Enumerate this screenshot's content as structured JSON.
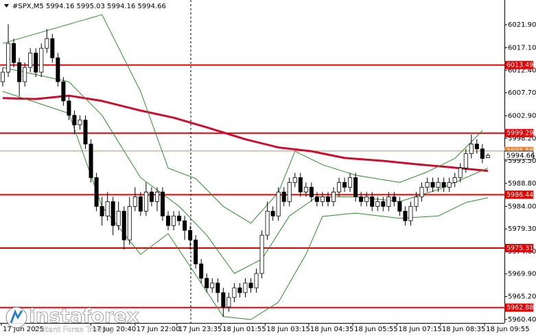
{
  "chart_data": {
    "type": "candlestick",
    "title": "#SPX,M5  5994.16 5995.03 5994.16 5994.66",
    "open": [
      6010,
      6012,
      6018,
      6014,
      6010,
      6013,
      6016,
      6012,
      6017,
      6019,
      6015,
      6010,
      6006,
      6003,
      6001,
      6002,
      5997,
      5990,
      5984,
      5982,
      5985,
      5980,
      5983,
      5977,
      5984,
      5986,
      5983,
      5987,
      5985,
      5987,
      5982,
      5980,
      5982,
      5981,
      5979,
      5977,
      5972,
      5969,
      5967,
      5968,
      5966,
      5963,
      5965,
      5967,
      5966,
      5968,
      5967,
      5970,
      5978,
      5983,
      5982,
      5987,
      5985,
      5989,
      5990,
      5987,
      5988,
      5986,
      5985,
      5986,
      5985,
      5987,
      5989,
      5988,
      5990,
      5986,
      5985,
      5986,
      5984,
      5985,
      5984,
      5986,
      5985,
      5983,
      5981,
      5984,
      5986,
      5988,
      5989,
      5988,
      5989,
      5988,
      5989,
      5990,
      5992,
      5995,
      5997,
      5996,
      5994.16
    ],
    "high": [
      6013,
      6022,
      6019,
      6015,
      6014,
      6017,
      6017,
      6018,
      6021,
      6020,
      6016,
      6011,
      6007,
      6004,
      6003,
      6003,
      5998,
      5991,
      5986,
      5987,
      5986,
      5985,
      5984,
      5986,
      5988,
      5987,
      5989,
      5988,
      5988,
      5988,
      5983,
      5983,
      5983,
      5982,
      5980,
      5978,
      5973,
      5970,
      5969,
      5969,
      5967,
      5966,
      5968,
      5968,
      5969,
      5969,
      5971,
      5979,
      5985,
      5984,
      5988,
      5988,
      5990,
      5991,
      5991,
      5989,
      5989,
      5987,
      5987,
      5987,
      5988,
      5990,
      5990,
      5991,
      5991,
      5987,
      5987,
      5987,
      5986,
      5986,
      5987,
      5987,
      5986,
      5984,
      5985,
      5987,
      5989,
      5990,
      5990,
      5990,
      5990,
      5990,
      5991,
      5993,
      5996,
      5999,
      5998,
      5997,
      5995.03
    ],
    "low": [
      6009,
      6011,
      6013,
      6007,
      6009,
      6012,
      6011,
      6011,
      6016,
      6014,
      6009,
      6005,
      6002,
      5999,
      6000,
      5996,
      5989,
      5983,
      5980,
      5981,
      5978,
      5979,
      5975,
      5976,
      5983,
      5982,
      5982,
      5984,
      5983,
      5981,
      5979,
      5979,
      5980,
      5977,
      5975,
      5971,
      5968,
      5966,
      5966,
      5964,
      5961,
      5962,
      5964,
      5965,
      5965,
      5966,
      5966,
      5969,
      5977,
      5981,
      5981,
      5984,
      5984,
      5988,
      5986,
      5986,
      5985,
      5984,
      5984,
      5984,
      5984,
      5986,
      5987,
      5987,
      5985,
      5984,
      5984,
      5983,
      5983,
      5983,
      5983,
      5984,
      5982,
      5980,
      5980,
      5983,
      5985,
      5987,
      5987,
      5987,
      5987,
      5987,
      5988,
      5989,
      5991,
      5994,
      5995,
      5993,
      5994.16
    ],
    "close": [
      6012,
      6018,
      6014,
      6010,
      6013,
      6016,
      6012,
      6017,
      6019,
      6015,
      6010,
      6006,
      6003,
      6001,
      6002,
      5997,
      5990,
      5984,
      5982,
      5985,
      5980,
      5983,
      5977,
      5984,
      5986,
      5983,
      5987,
      5985,
      5987,
      5982,
      5980,
      5982,
      5981,
      5979,
      5977,
      5972,
      5969,
      5967,
      5968,
      5966,
      5963,
      5965,
      5967,
      5966,
      5968,
      5967,
      5970,
      5978,
      5983,
      5982,
      5987,
      5985,
      5989,
      5990,
      5987,
      5988,
      5986,
      5985,
      5986,
      5985,
      5987,
      5989,
      5988,
      5990,
      5986,
      5985,
      5986,
      5984,
      5985,
      5984,
      5986,
      5985,
      5983,
      5981,
      5984,
      5986,
      5988,
      5989,
      5988,
      5989,
      5988,
      5989,
      5990,
      5992,
      5995,
      5997,
      5996,
      5994,
      5994.66
    ],
    "indicators": [
      {
        "color": "#c8102e",
        "width": 3,
        "x": [
          0,
          6,
          12,
          18,
          25,
          31,
          37,
          44,
          50,
          56,
          62,
          69,
          75,
          81,
          88
        ],
        "values": [
          6006.6,
          6006.4,
          6007.1,
          6006.0,
          6004.0,
          6002.5,
          6000.5,
          5998.0,
          5996.3,
          5995.5,
          5994.1,
          5993.5,
          5992.8,
          5992.2,
          5991.4
        ]
      },
      {
        "color": "#2e8b2e",
        "width": 1,
        "x": [
          0,
          18,
          25,
          30,
          35,
          40,
          45,
          50,
          53,
          58,
          64,
          72,
          77,
          82,
          87
        ],
        "values": [
          6018,
          6024,
          6008,
          5992,
          5989.8,
          5984,
          5980.5,
          5986.9,
          5995.5,
          5992.7,
          5990.5,
          5989,
          5991.2,
          5994,
          5999.8
        ]
      },
      {
        "color": "#2e8b2e",
        "width": 1,
        "x": [
          0,
          12,
          18,
          25,
          32,
          37,
          42,
          47,
          52,
          57,
          64,
          72,
          79,
          88
        ],
        "values": [
          6013,
          6010,
          6003,
          5990,
          5984,
          5978,
          5970,
          5973,
          5982,
          5986,
          5986,
          5985,
          5987.5,
          5992
        ]
      },
      {
        "color": "#2e8b2e",
        "width": 1,
        "x": [
          0,
          12,
          18,
          25,
          30,
          35,
          40,
          45,
          50,
          55,
          58,
          64,
          72,
          79,
          84,
          88
        ],
        "values": [
          6008,
          6003.4,
          5984,
          5974,
          5978.3,
          5969.7,
          5961,
          5960.4,
          5964,
          5974,
          5981.9,
          5982.6,
          5981.5,
          5982,
          5984.8,
          5985.8
        ]
      }
    ],
    "levels": [
      6013.49,
      5999.29,
      5986.44,
      5975.31,
      5962.88
    ],
    "level_color": "#e00000",
    "ask": 5995.56,
    "ask_color": "#e8833a",
    "bid": 5994.66,
    "ylim": [
      5959.68,
      6027.06
    ],
    "yticks": [
      {
        "value": 6021.9,
        "label": "6021.90"
      },
      {
        "value": 6017.1,
        "label": "6017.10"
      },
      {
        "value": 6012.4,
        "label": "6012.40"
      },
      {
        "value": 6007.7,
        "label": "6007.70"
      },
      {
        "value": 6002.9,
        "label": "6002.90"
      },
      {
        "value": 5998.2,
        "label": "5998.20"
      },
      {
        "value": 5993.5,
        "label": "5993.50"
      },
      {
        "value": 5988.8,
        "label": "5988.80"
      },
      {
        "value": 5984.0,
        "label": "5984.00"
      },
      {
        "value": 5979.3,
        "label": "5979.30"
      },
      {
        "value": 5974.6,
        "label": "5974.60"
      },
      {
        "value": 5969.9,
        "label": "5969.90"
      },
      {
        "value": 5965.2,
        "label": "5965.20"
      },
      {
        "value": 5960.4,
        "label": "5960.40"
      }
    ],
    "xlim": [
      -0.5,
      91
    ],
    "xticks": [
      {
        "value": -0.25,
        "label": "17 Jun 2025"
      },
      {
        "value": 16,
        "label": "17 Jun 20:40"
      },
      {
        "value": 24,
        "label": "17 Jun 22:00"
      },
      {
        "value": 31.6,
        "label": "17 Jun 23:35"
      },
      {
        "value": 39.6,
        "label": "18 Jun 01:55"
      },
      {
        "value": 47.6,
        "label": "18 Jun 03:15"
      },
      {
        "value": 55.5,
        "label": "18 Jun 04:35"
      },
      {
        "value": 63.5,
        "label": "18 Jun 05:55"
      },
      {
        "value": 71.5,
        "label": "18 Jun 07:15"
      },
      {
        "value": 79.4,
        "label": "18 Jun 08:35"
      },
      {
        "value": 87.4,
        "label": "18 Jun 09:55"
      }
    ]
  },
  "logo": {
    "name": "instaforex",
    "tagline": "Instant Forex Trading"
  }
}
